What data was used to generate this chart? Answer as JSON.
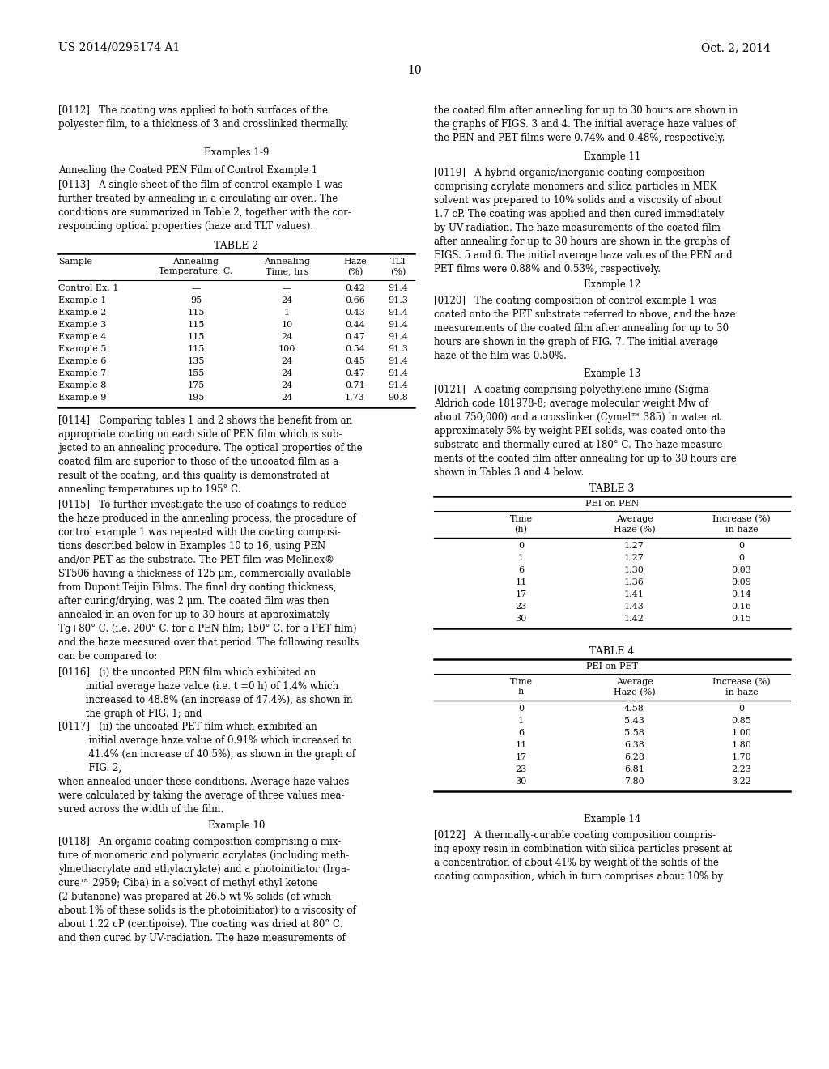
{
  "page_number": "10",
  "header_left": "US 2014/0295174 A1",
  "header_right": "Oct. 2, 2014",
  "background_color": "#ffffff",
  "text_color": "#000000",
  "font_size": 8.5,
  "table2": {
    "title": "TABLE 2",
    "headers": [
      "Sample",
      "Annealing\nTemperature, C.",
      "Annealing\nTime, hrs",
      "Haze\n(%)",
      "TLT\n(%)"
    ],
    "rows": [
      [
        "Control Ex. 1",
        "—",
        "—",
        "0.42",
        "91.4"
      ],
      [
        "Example 1",
        "95",
        "24",
        "0.66",
        "91.3"
      ],
      [
        "Example 2",
        "115",
        "1",
        "0.43",
        "91.4"
      ],
      [
        "Example 3",
        "115",
        "10",
        "0.44",
        "91.4"
      ],
      [
        "Example 4",
        "115",
        "24",
        "0.47",
        "91.4"
      ],
      [
        "Example 5",
        "115",
        "100",
        "0.54",
        "91.3"
      ],
      [
        "Example 6",
        "135",
        "24",
        "0.45",
        "91.4"
      ],
      [
        "Example 7",
        "155",
        "24",
        "0.47",
        "91.4"
      ],
      [
        "Example 8",
        "175",
        "24",
        "0.71",
        "91.4"
      ],
      [
        "Example 9",
        "195",
        "24",
        "1.73",
        "90.8"
      ]
    ]
  },
  "table3": {
    "title": "TABLE 3",
    "subtitle": "PEI on PEN",
    "headers": [
      "Time\n(h)",
      "Average\nHaze (%)",
      "Increase (%)\nin haze"
    ],
    "rows": [
      [
        "0",
        "1.27",
        "0"
      ],
      [
        "1",
        "1.27",
        "0"
      ],
      [
        "6",
        "1.30",
        "0.03"
      ],
      [
        "11",
        "1.36",
        "0.09"
      ],
      [
        "17",
        "1.41",
        "0.14"
      ],
      [
        "23",
        "1.43",
        "0.16"
      ],
      [
        "30",
        "1.42",
        "0.15"
      ]
    ]
  },
  "table4": {
    "title": "TABLE 4",
    "subtitle": "PEI on PET",
    "headers": [
      "Time\nh",
      "Average\nHaze (%)",
      "Increase (%)\nin haze"
    ],
    "rows": [
      [
        "0",
        "4.58",
        "0"
      ],
      [
        "1",
        "5.43",
        "0.85"
      ],
      [
        "6",
        "5.58",
        "1.00"
      ],
      [
        "11",
        "6.38",
        "1.80"
      ],
      [
        "17",
        "6.28",
        "1.70"
      ],
      [
        "23",
        "6.81",
        "2.23"
      ],
      [
        "30",
        "7.80",
        "3.22"
      ]
    ]
  }
}
